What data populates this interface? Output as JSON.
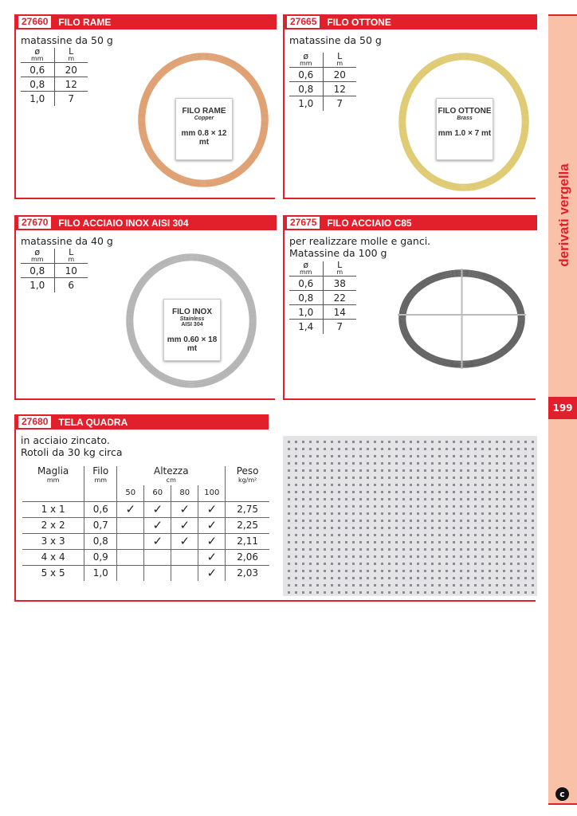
{
  "products": [
    {
      "code": "27660",
      "title": "FILO RAME",
      "desc": [
        "matassine da 50 g"
      ],
      "headers": [
        {
          "main": "ø",
          "unit": "mm"
        },
        {
          "main": "L",
          "unit": "m"
        }
      ],
      "rows": [
        [
          "0,6",
          "20"
        ],
        [
          "0,8",
          "12"
        ],
        [
          "1,0",
          "7"
        ]
      ],
      "pack": {
        "line1": "FILO RAME",
        "line2": "Copper",
        "line3": "mm 0.8 × 12 mt"
      },
      "color": "#d9905a"
    },
    {
      "code": "27665",
      "title": "FILO OTTONE",
      "desc": [
        "matassine da 50 g"
      ],
      "headers": [
        {
          "main": "ø",
          "unit": "mm"
        },
        {
          "main": "L",
          "unit": "m"
        }
      ],
      "rows": [
        [
          "0,6",
          "20"
        ],
        [
          "0,8",
          "12"
        ],
        [
          "1,0",
          "7"
        ]
      ],
      "pack": {
        "line1": "FILO OTTONE",
        "line2": "Brass",
        "line3": "mm 1.0 × 7 mt"
      },
      "color": "#d9c25a"
    },
    {
      "code": "27670",
      "title": "FILO ACCIAIO INOX AISI 304",
      "desc": [
        "matassine da 40 g"
      ],
      "headers": [
        {
          "main": "ø",
          "unit": "mm"
        },
        {
          "main": "L",
          "unit": "m"
        }
      ],
      "rows": [
        [
          "0,8",
          "10"
        ],
        [
          "1,0",
          "6"
        ]
      ],
      "pack": {
        "line1": "FILO INOX",
        "line2": "Stainless",
        "line2b": "AISI 304",
        "line3": "mm 0.60 × 18 mt"
      },
      "color": "#a8a8a8"
    },
    {
      "code": "27675",
      "title": "FILO ACCIAIO C85",
      "desc": [
        "per realizzare molle e ganci.",
        "Matassine da 100 g"
      ],
      "headers": [
        {
          "main": "ø",
          "unit": "mm"
        },
        {
          "main": "L",
          "unit": "m"
        }
      ],
      "rows": [
        [
          "0,6",
          "38"
        ],
        [
          "0,8",
          "22"
        ],
        [
          "1,0",
          "14"
        ],
        [
          "1,4",
          "7"
        ]
      ],
      "color": "#4a4a4a"
    }
  ],
  "tela": {
    "code": "27680",
    "title": "TELA QUADRA",
    "desc": [
      "in acciaio zincato.",
      "Rotoli da 30 kg circa"
    ],
    "headers": {
      "maglia": "Maglia",
      "maglia_unit": "mm",
      "filo": "Filo",
      "filo_unit": "mm",
      "altezza": "Altezza",
      "altezza_unit": "cm",
      "peso": "Peso",
      "peso_unit": "kg/m²",
      "heights": [
        "50",
        "60",
        "80",
        "100"
      ]
    },
    "check": "✓",
    "rows": [
      {
        "maglia": "1 x 1",
        "filo": "0,6",
        "avail": [
          true,
          true,
          true,
          true
        ],
        "peso": "2,75"
      },
      {
        "maglia": "2 x 2",
        "filo": "0,7",
        "avail": [
          false,
          true,
          true,
          true
        ],
        "peso": "2,25"
      },
      {
        "maglia": "3 x 3",
        "filo": "0,8",
        "avail": [
          false,
          true,
          true,
          true
        ],
        "peso": "2,11"
      },
      {
        "maglia": "4 x 4",
        "filo": "0,9",
        "avail": [
          false,
          false,
          false,
          true
        ],
        "peso": "2,06"
      },
      {
        "maglia": "5 x 5",
        "filo": "1,0",
        "avail": [
          false,
          false,
          false,
          true
        ],
        "peso": "2,03"
      }
    ]
  },
  "sidebar": {
    "section": "derivati vergella",
    "page": "199",
    "logo_letter": "c"
  },
  "colors": {
    "accent": "#e2202b",
    "sidebar": "#f8c1a8"
  }
}
